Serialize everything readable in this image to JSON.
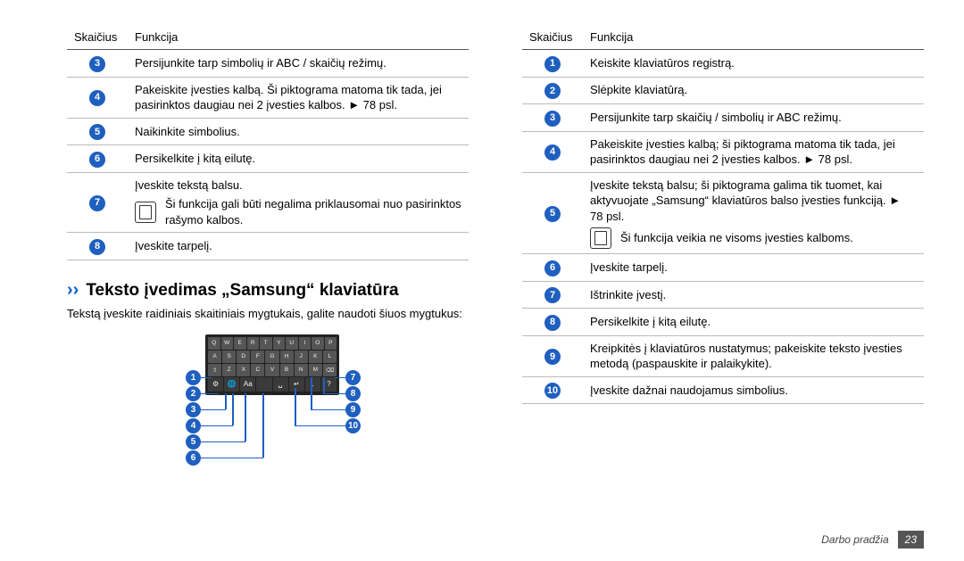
{
  "colors": {
    "accent_blue": "#1f5fbf",
    "text": "#000000",
    "border_light": "#bbbbbb",
    "border_dark": "#555555",
    "page_num_bg": "#555555",
    "kbd_bg": "#222222",
    "key_bg": "#555555"
  },
  "left_table": {
    "headers": {
      "num": "Skaičius",
      "func": "Funkcija"
    },
    "rows": [
      {
        "n": "3",
        "text": "Persijunkite tarp simbolių ir ABC / skaičių režimų."
      },
      {
        "n": "4",
        "text": "Pakeiskite įvesties kalbą. Ši piktograma matoma tik tada, jei pasirinktos daugiau nei 2 įvesties kalbos. ► 78 psl."
      },
      {
        "n": "5",
        "text": "Naikinkite simbolius."
      },
      {
        "n": "6",
        "text": "Persikelkite į kitą eilutę."
      },
      {
        "n": "7",
        "text": "Įveskite tekstą balsu.",
        "note": "Ši funkcija gali būti negalima priklausomai nuo pasirinktos rašymo kalbos."
      },
      {
        "n": "8",
        "text": "Įveskite tarpelį."
      }
    ]
  },
  "section": {
    "chevron": "››",
    "title": "Teksto įvedimas „Samsung“ klaviatūra",
    "desc": "Tekstą įveskite raidiniais skaitiniais mygtukais, galite naudoti šiuos mygtukus:"
  },
  "keyboard": {
    "row1": [
      "Q",
      "W",
      "E",
      "R",
      "T",
      "Y",
      "U",
      "I",
      "O",
      "P"
    ],
    "row2": [
      "A",
      "S",
      "D",
      "F",
      "G",
      "H",
      "J",
      "K",
      "L"
    ],
    "row3": [
      "⇧",
      "Z",
      "X",
      "C",
      "V",
      "B",
      "N",
      "M",
      "⌫"
    ],
    "row4": [
      "⚙",
      "🌐",
      "Aa",
      "",
      "␣",
      "↵",
      ".",
      "?"
    ],
    "callouts_left": [
      "1",
      "2",
      "3",
      "4",
      "5",
      "6"
    ],
    "callouts_right": [
      "7",
      "8",
      "9",
      "10"
    ]
  },
  "right_table": {
    "headers": {
      "num": "Skaičius",
      "func": "Funkcija"
    },
    "rows": [
      {
        "n": "1",
        "text": "Keiskite klaviatūros registrą."
      },
      {
        "n": "2",
        "text": "Slėpkite klaviatūrą."
      },
      {
        "n": "3",
        "text": "Persijunkite tarp skaičių / simbolių ir ABC režimų."
      },
      {
        "n": "4",
        "text": "Pakeiskite įvesties kalbą; ši piktograma matoma tik tada, jei pasirinktos daugiau nei 2 įvesties kalbos. ► 78 psl."
      },
      {
        "n": "5",
        "text": "Įveskite tekstą balsu; ši piktograma galima tik tuomet, kai aktyvuojate „Samsung“ klaviatūros balso įvesties funkciją. ► 78 psl.",
        "note": "Ši funkcija veikia ne visoms įvesties kalboms."
      },
      {
        "n": "6",
        "text": "Įveskite tarpelį."
      },
      {
        "n": "7",
        "text": "Ištrinkite įvestį."
      },
      {
        "n": "8",
        "text": "Persikelkite į kitą eilutę."
      },
      {
        "n": "9",
        "text": "Kreipkitės į klaviatūros nustatymus; pakeiskite teksto įvesties metodą (paspauskite ir palaikykite)."
      },
      {
        "n": "10",
        "text": "Įveskite dažnai naudojamus simbolius."
      }
    ]
  },
  "footer": {
    "label": "Darbo pradžia",
    "page": "23"
  }
}
